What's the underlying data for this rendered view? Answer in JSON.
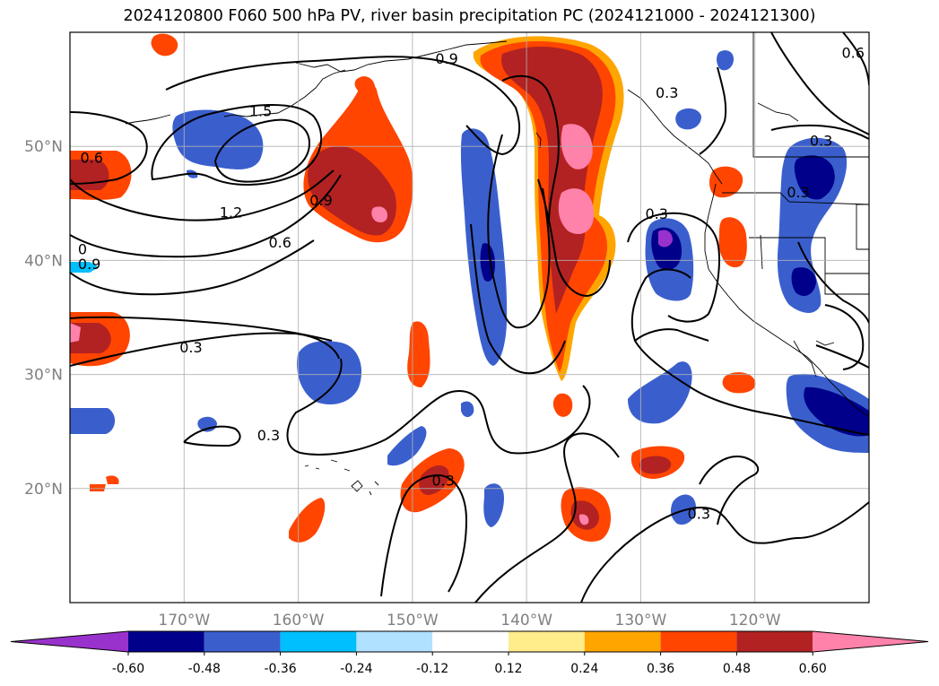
{
  "title": "2024120800 F060 500 hPa PV, river basin precipitation PC (2024121000 - 2024121300)",
  "map": {
    "lon_range": [
      -180,
      -110
    ],
    "lat_range": [
      10,
      60
    ],
    "lon_ticks": [
      {
        "value": -170,
        "label": "170°W"
      },
      {
        "value": -160,
        "label": "160°W"
      },
      {
        "value": -150,
        "label": "150°W"
      },
      {
        "value": -140,
        "label": "140°W"
      },
      {
        "value": -130,
        "label": "130°W"
      },
      {
        "value": -120,
        "label": "120°W"
      }
    ],
    "lat_ticks": [
      {
        "value": 20,
        "label": "20°N"
      },
      {
        "value": 30,
        "label": "30°N"
      },
      {
        "value": 40,
        "label": "40°N"
      },
      {
        "value": 50,
        "label": "50°N"
      }
    ],
    "gridlines": true
  },
  "contour_labels": [
    {
      "text": "0.9",
      "lon": -147,
      "lat": 57.6
    },
    {
      "text": "1.5",
      "lon": -163.3,
      "lat": 53.0
    },
    {
      "text": "0.6",
      "lon": -178.1,
      "lat": 48.9
    },
    {
      "text": "1.2",
      "lon": -165.9,
      "lat": 44.1
    },
    {
      "text": "0.9",
      "lon": -158.0,
      "lat": 45.2
    },
    {
      "text": "0.6",
      "lon": -161.6,
      "lat": 41.5
    },
    {
      "text": "0.3",
      "lon": -169.4,
      "lat": 32.3
    },
    {
      "text": "0.3",
      "lon": -162.6,
      "lat": 24.6
    },
    {
      "text": "0.3",
      "lon": -128.6,
      "lat": 44.0
    },
    {
      "text": "0.3",
      "lon": -127.7,
      "lat": 54.6
    },
    {
      "text": "0.3",
      "lon": -116.2,
      "lat": 45.9
    },
    {
      "text": "0.3",
      "lon": -114.2,
      "lat": 50.4
    },
    {
      "text": "0.6",
      "lon": -111.4,
      "lat": 58.1
    },
    {
      "text": "0.9",
      "lon": -0.0,
      "lat": 0.0
    },
    {
      "text": "0.3",
      "lon": -124.9,
      "lat": 17.7
    },
    {
      "text": "0.3",
      "lon": -147.3,
      "lat": 20.6
    },
    {
      "text": "0.9",
      "lon": -178.3,
      "lat": 39.6
    },
    {
      "text": "0",
      "lon": -178.9,
      "lat": 40.9
    }
  ],
  "colorbar": {
    "ticks": [
      "-0.60",
      "-0.48",
      "-0.36",
      "-0.24",
      "-0.12",
      "0.12",
      "0.24",
      "0.36",
      "0.48",
      "0.60"
    ],
    "colors": [
      "#9932cc",
      "#00008b",
      "#3a5fcd",
      "#00bfff",
      "#b0e2ff",
      "#ffffff",
      "#ffec8b",
      "#ffa500",
      "#ff4500",
      "#b22222",
      "#ff82ab"
    ]
  }
}
